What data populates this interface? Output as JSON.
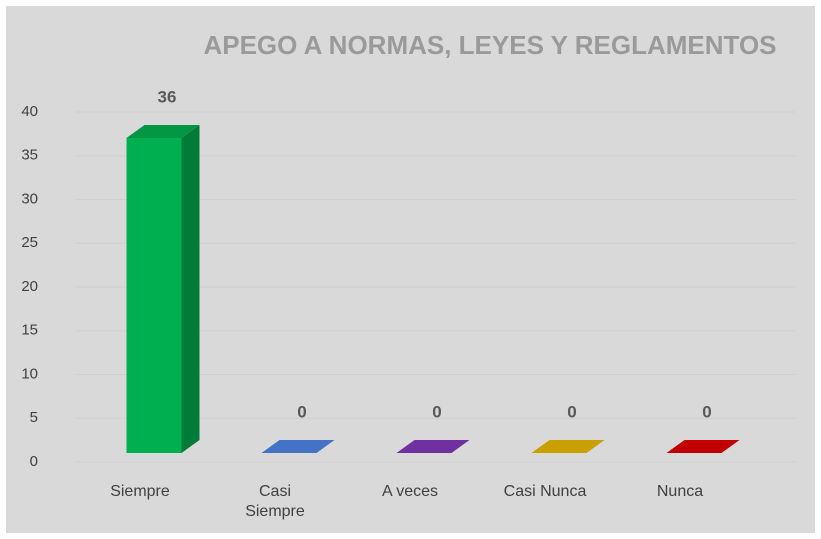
{
  "chart_data": {
    "type": "bar3d",
    "title": "APEGO A NORMAS, LEYES Y REGLAMENTOS",
    "categories": [
      "Siempre",
      "Casi Siempre",
      "A veces",
      "Casi Nunca",
      "Nunca"
    ],
    "values": [
      36,
      0,
      0,
      0,
      0
    ],
    "colors": [
      "#00b050",
      "#4472c4",
      "#7030a0",
      "#c9a000",
      "#c00000"
    ],
    "ylim": [
      0,
      40
    ],
    "yticks": [
      0,
      5,
      10,
      15,
      20,
      25,
      30,
      35,
      40
    ],
    "grid": true
  }
}
